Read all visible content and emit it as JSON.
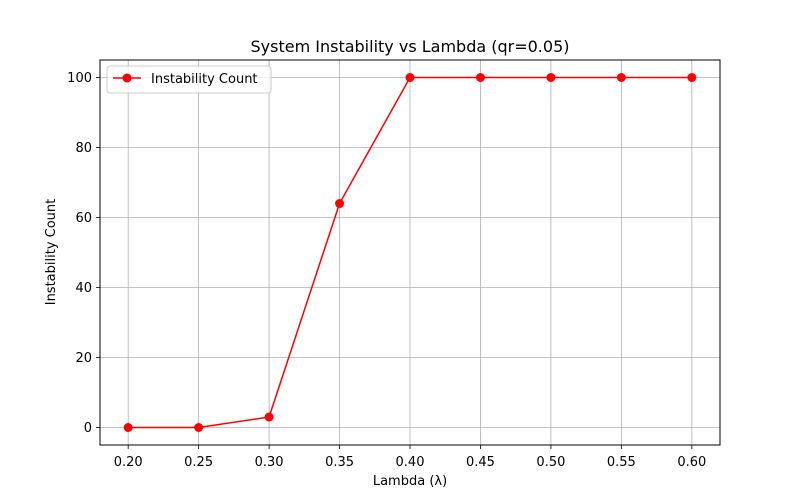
{
  "chart_data": {
    "type": "line",
    "title": "System Instability vs Lambda (qr=0.05)",
    "xlabel": "Lambda (λ)",
    "ylabel": "Instability Count",
    "x": [
      0.2,
      0.25,
      0.3,
      0.35,
      0.4,
      0.45,
      0.5,
      0.55,
      0.6
    ],
    "x_tick_labels": [
      "0.20",
      "0.25",
      "0.30",
      "0.35",
      "0.40",
      "0.45",
      "0.50",
      "0.55",
      "0.60"
    ],
    "y_ticks": [
      0,
      20,
      40,
      60,
      80,
      100
    ],
    "y_tick_labels": [
      "0",
      "20",
      "40",
      "60",
      "80",
      "100"
    ],
    "xlim": [
      0.18,
      0.62
    ],
    "ylim": [
      -5,
      105
    ],
    "grid": true,
    "legend_position": "upper-left",
    "series": [
      {
        "name": "Instability Count",
        "color": "#ff0000",
        "marker": "circle",
        "values": [
          0,
          0,
          3,
          64,
          100,
          100,
          100,
          100,
          100
        ]
      }
    ]
  }
}
